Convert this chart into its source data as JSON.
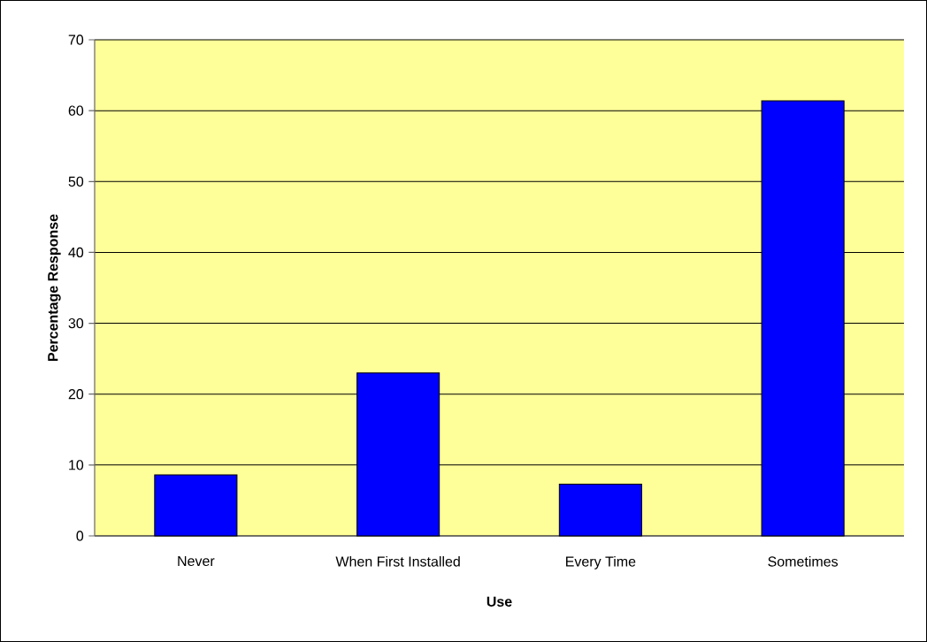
{
  "chart_data": {
    "type": "bar",
    "xlabel": "Use",
    "ylabel": "Percentage Response",
    "categories": [
      "Never",
      "When First Installed",
      "Every Time",
      "Sometimes"
    ],
    "values": [
      8.6,
      23,
      7.3,
      61.4
    ],
    "color": "#0000ff",
    "ylim": [
      0,
      70
    ],
    "yticks": [
      0,
      10,
      20,
      30,
      40,
      50,
      60,
      70
    ],
    "grid": "y"
  }
}
